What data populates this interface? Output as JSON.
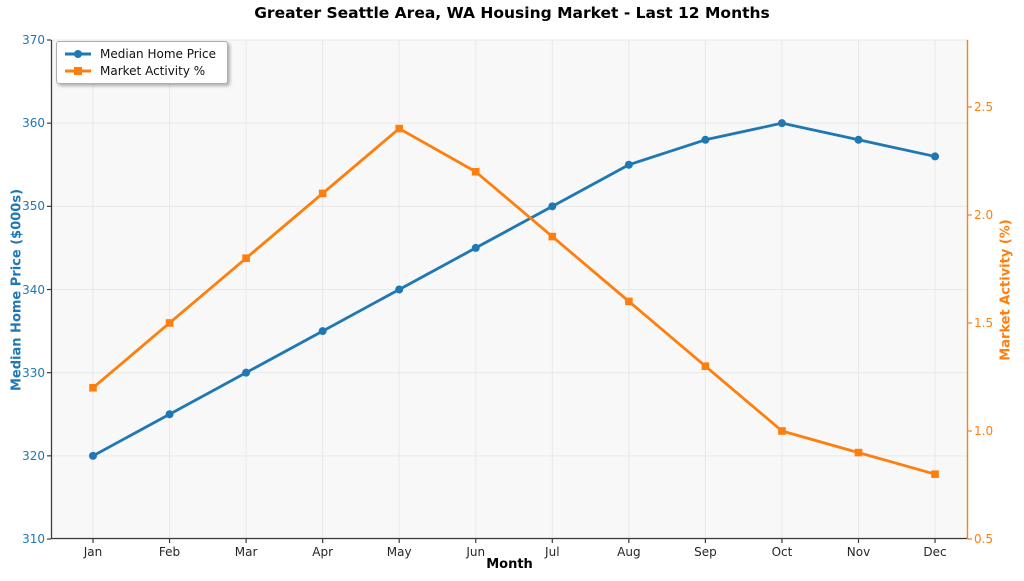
{
  "title": "Greater Seattle Area, WA Housing Market - Last 12 Months",
  "chart_data": {
    "type": "line",
    "title": "Greater Seattle Area, WA Housing Market - Last 12 Months",
    "xlabel": "Month",
    "categories": [
      "Jan",
      "Feb",
      "Mar",
      "Apr",
      "May",
      "Jun",
      "Jul",
      "Aug",
      "Sep",
      "Oct",
      "Nov",
      "Dec"
    ],
    "series": [
      {
        "name": "Median Home Price",
        "axis": "left",
        "color": "#1f77b4",
        "marker": "circle",
        "values": [
          320,
          325,
          330,
          335,
          340,
          345,
          350,
          355,
          358,
          360,
          358,
          356
        ]
      },
      {
        "name": "Market Activity %",
        "axis": "right",
        "color": "#ff7f0e",
        "marker": "square",
        "values": [
          1.2,
          1.5,
          1.8,
          2.1,
          2.4,
          2.2,
          1.9,
          1.6,
          1.3,
          1.0,
          0.9,
          0.8
        ]
      }
    ],
    "left_axis": {
      "label": "Median Home Price ($000s)",
      "color": "#1f77b4",
      "ticks": [
        "310",
        "320",
        "330",
        "340",
        "350",
        "360",
        "370"
      ],
      "tick_values": [
        310,
        320,
        330,
        340,
        350,
        360,
        370
      ],
      "range": [
        310,
        370
      ]
    },
    "right_axis": {
      "label": "Market Activity (%)",
      "color": "#ff7f0e",
      "ticks": [
        "0.5",
        "1.0",
        "1.5",
        "2.0",
        "2.5"
      ],
      "tick_values": [
        0.5,
        1.0,
        1.5,
        2.0,
        2.5
      ],
      "range": [
        0.5,
        2.81
      ]
    },
    "grid": true,
    "legend_position": "upper-left"
  },
  "colors": {
    "plot_background": "#f8f8f8",
    "grid": "#e9e9e9",
    "spine": "#3c3c3c",
    "blue": "#1f77b4",
    "orange": "#ff7f0e"
  }
}
